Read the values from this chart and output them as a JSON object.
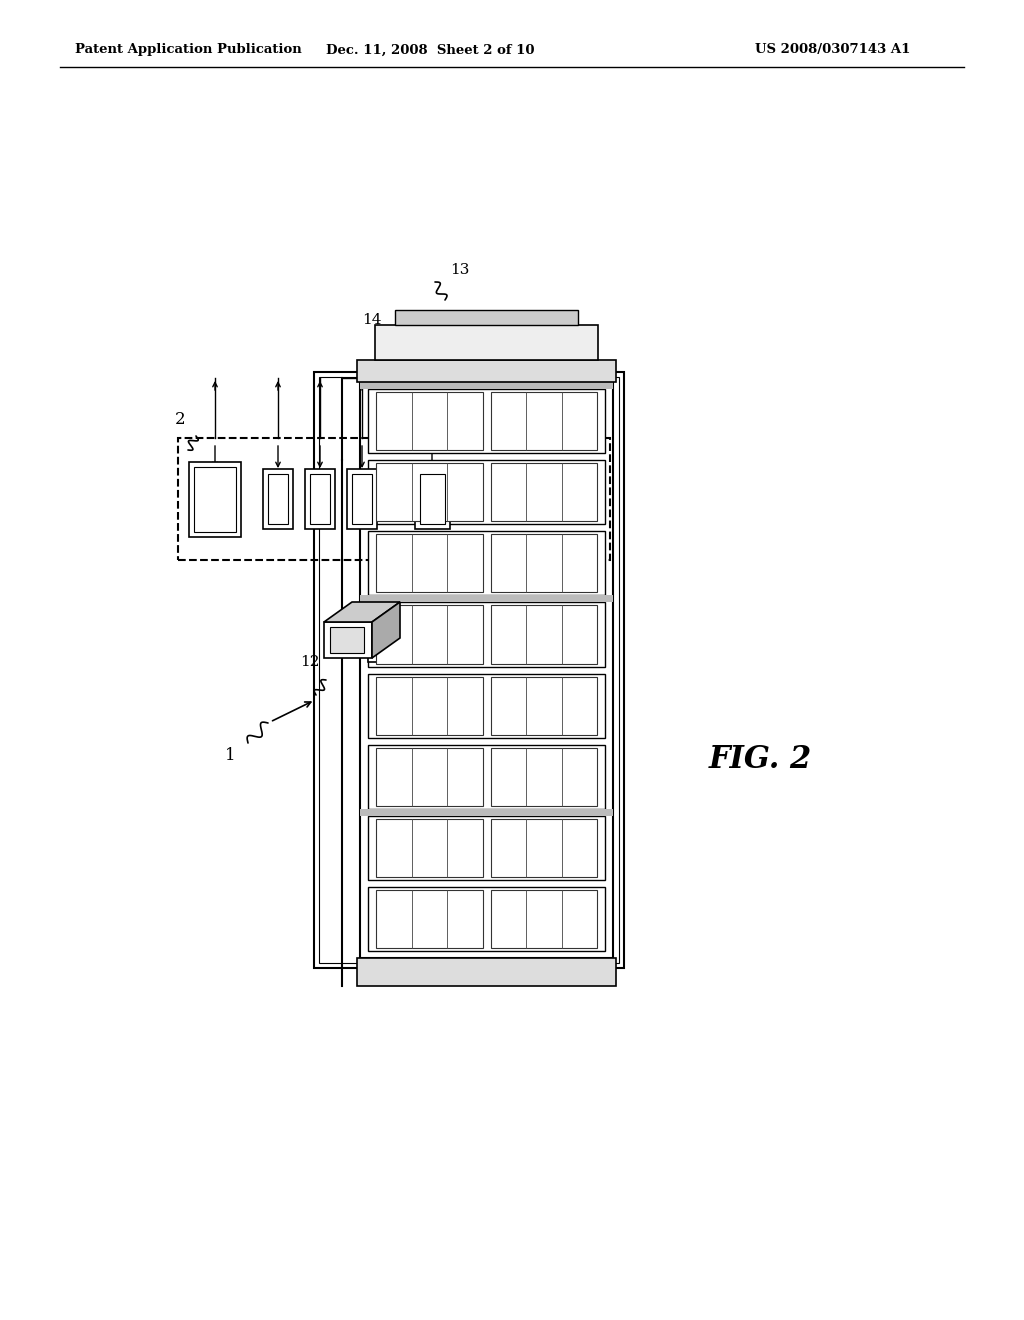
{
  "bg_color": "#ffffff",
  "title_left": "Patent Application Publication",
  "title_mid": "Dec. 11, 2008  Sheet 2 of 10",
  "title_right": "US 2008/0307143 A1",
  "fig_label": "FIG. 2",
  "line_color": "#000000",
  "gray_light": "#cccccc",
  "gray_dark": "#888888",
  "gray_mid": "#aaaaaa"
}
